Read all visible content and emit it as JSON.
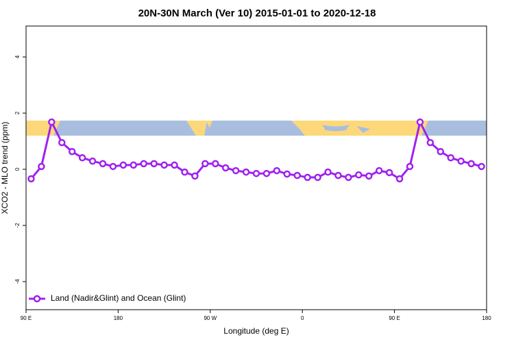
{
  "chart_data": {
    "type": "line",
    "title": "20N-30N March (Ver 10)   2015-01-01 to 2020-12-18",
    "x_label": "Longitude (deg E)",
    "y_label": "XCO2 - MLO trend (ppm)",
    "x": [
      95,
      105,
      115,
      125,
      135,
      145,
      155,
      165,
      175,
      185,
      195,
      205,
      215,
      225,
      235,
      245,
      255,
      265,
      275,
      285,
      295,
      305,
      315,
      325,
      335,
      345,
      355,
      365,
      375,
      385,
      395,
      405,
      415,
      425,
      435,
      445,
      455,
      465,
      475,
      485,
      495,
      505,
      515,
      525,
      535
    ],
    "series": [
      {
        "name": "Land (Nadir&Glint) and Ocean (Glint)",
        "color": "#a020f0",
        "values": [
          -0.34,
          0.1,
          1.68,
          0.95,
          0.63,
          0.41,
          0.29,
          0.2,
          0.1,
          0.15,
          0.15,
          0.2,
          0.2,
          0.15,
          0.15,
          -0.1,
          -0.24,
          0.2,
          0.2,
          0.05,
          -0.05,
          -0.1,
          -0.15,
          -0.15,
          -0.05,
          -0.17,
          -0.22,
          -0.29,
          -0.29,
          -0.1,
          -0.22,
          -0.29,
          -0.2,
          -0.24,
          -0.05,
          -0.12,
          -0.34,
          0.1,
          1.68,
          0.95,
          0.63,
          0.41,
          0.29,
          0.2,
          0.1
        ]
      }
    ],
    "xlim": [
      90,
      540
    ],
    "xticks": [
      {
        "value": 90,
        "label": "90 E"
      },
      180,
      {
        "value": 270,
        "label": "90 W"
      },
      {
        "value": 360,
        "label": "0"
      },
      {
        "value": 450,
        "label": "90 E"
      },
      {
        "value": 540,
        "label": "180"
      }
    ],
    "ylim": [
      -5,
      5.1
    ],
    "yticks": [
      -4,
      -2,
      0,
      2,
      4
    ],
    "legend": "bottom left"
  }
}
